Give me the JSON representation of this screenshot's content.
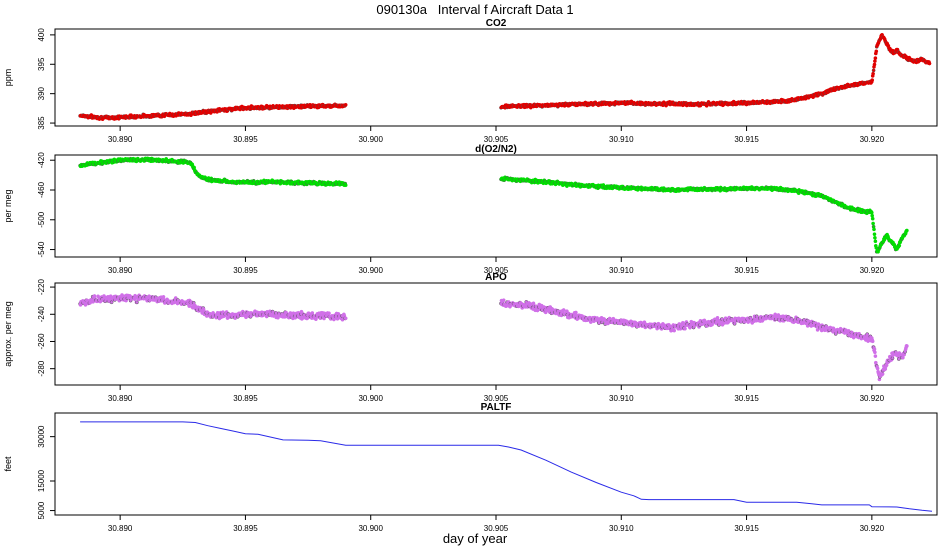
{
  "page": {
    "title": "090130a   Interval f Aircraft Data 1",
    "xlabel": "day of year"
  },
  "chart_data": [
    {
      "type": "scatter",
      "title": "CO2",
      "ylabel": "ppm",
      "color": "#e00000",
      "xlim": [
        30.8874,
        30.9226
      ],
      "ylim": [
        384.5,
        401
      ],
      "xticks": [
        "30.890",
        "30.895",
        "30.900",
        "30.905",
        "30.910",
        "30.915",
        "30.920"
      ],
      "yticks": [
        "385",
        "390",
        "395",
        "400"
      ],
      "series": [
        {
          "x": [
            30.8884,
            30.889,
            30.8895,
            30.89,
            30.8905,
            30.891,
            30.8915,
            30.892,
            30.8925,
            30.8929,
            30.8932,
            30.894,
            30.895,
            30.896,
            30.897,
            30.898,
            30.899,
            30.9052,
            30.906,
            30.907,
            30.908,
            30.909,
            30.91,
            30.911,
            30.912,
            30.913,
            30.914,
            30.915,
            30.916,
            30.917,
            30.9175,
            30.918,
            30.9185,
            30.919,
            30.9195,
            30.92,
            30.9202,
            30.9204,
            30.9206,
            30.9208,
            30.921,
            30.9212,
            30.9215,
            30.9218,
            30.922,
            30.9223
          ],
          "y": [
            386.3,
            386.0,
            385.9,
            386.0,
            386.1,
            386.2,
            386.3,
            386.4,
            386.5,
            386.6,
            386.8,
            387.2,
            387.6,
            387.7,
            387.8,
            387.9,
            388.0,
            387.8,
            387.9,
            388.0,
            388.2,
            388.3,
            388.4,
            388.3,
            388.3,
            388.2,
            388.3,
            388.4,
            388.6,
            389.0,
            389.5,
            390.0,
            390.8,
            391.3,
            391.7,
            392.0,
            398.0,
            400.0,
            398.5,
            397.0,
            397.3,
            396.5,
            395.8,
            395.5,
            395.8,
            395.2
          ]
        }
      ]
    },
    {
      "type": "scatter",
      "title": "d(O2/N2)",
      "ylabel": "per meg",
      "color": "#00dd00",
      "xlim": [
        30.8874,
        30.9226
      ],
      "ylim": [
        -550,
        -413
      ],
      "xticks": [
        "30.890",
        "30.895",
        "30.900",
        "30.905",
        "30.910",
        "30.915",
        "30.920"
      ],
      "yticks": [
        "-420",
        "-460",
        "-500",
        "-540"
      ],
      "series": [
        {
          "x": [
            30.8884,
            30.889,
            30.89,
            30.891,
            30.892,
            30.8928,
            30.8931,
            30.8935,
            30.894,
            30.895,
            30.896,
            30.897,
            30.898,
            30.899,
            30.9052,
            30.906,
            30.907,
            30.908,
            30.909,
            30.91,
            30.911,
            30.912,
            30.913,
            30.914,
            30.915,
            30.916,
            30.917,
            30.918,
            30.9185,
            30.919,
            30.9195,
            30.92,
            30.9202,
            30.9204,
            30.9206,
            30.9208,
            30.921,
            30.9212,
            30.9214
          ],
          "y": [
            -427,
            -424,
            -420,
            -419,
            -421,
            -423,
            -440,
            -446,
            -448,
            -450,
            -449,
            -450,
            -451,
            -452,
            -445,
            -447,
            -449,
            -453,
            -455,
            -457,
            -458,
            -460,
            -459,
            -459,
            -458,
            -458,
            -461,
            -468,
            -475,
            -483,
            -488,
            -490,
            -545,
            -530,
            -522,
            -530,
            -540,
            -525,
            -515
          ]
        }
      ]
    },
    {
      "type": "scatter",
      "title": "APO",
      "ylabel": "approx. per meg",
      "color": "#d070e8",
      "xlim": [
        30.8874,
        30.9226
      ],
      "ylim": [
        -292,
        -217
      ],
      "xticks": [
        "30.890",
        "30.895",
        "30.900",
        "30.905",
        "30.910",
        "30.915",
        "30.920"
      ],
      "yticks": [
        "-220",
        "-240",
        "-260",
        "-280"
      ],
      "series": [
        {
          "x": [
            30.8884,
            30.889,
            30.89,
            30.891,
            30.892,
            30.8928,
            30.8931,
            30.8935,
            30.894,
            30.895,
            30.896,
            30.897,
            30.898,
            30.899,
            30.9052,
            30.906,
            30.907,
            30.908,
            30.909,
            30.91,
            30.911,
            30.912,
            30.913,
            30.914,
            30.915,
            30.916,
            30.917,
            30.918,
            30.919,
            30.9195,
            30.92,
            30.9203,
            30.9206,
            30.9209,
            30.9212,
            30.9214
          ],
          "y": [
            -232,
            -229,
            -228,
            -228,
            -230,
            -232,
            -236,
            -240,
            -241,
            -240,
            -240,
            -241,
            -241,
            -242,
            -232,
            -233,
            -236,
            -241,
            -244,
            -246,
            -248,
            -250,
            -247,
            -245,
            -244,
            -242,
            -244,
            -250,
            -253,
            -256,
            -258,
            -287,
            -276,
            -268,
            -272,
            -264
          ]
        }
      ]
    },
    {
      "type": "line",
      "title": "PALTF",
      "ylabel": "feet",
      "color": "#2a2ae8",
      "xlim": [
        30.8874,
        30.9226
      ],
      "ylim": [
        3500,
        38000
      ],
      "xticks": [
        "30.890",
        "30.895",
        "30.900",
        "30.905",
        "30.910",
        "30.915",
        "30.920"
      ],
      "yticks": [
        "5000",
        "15000",
        "30000"
      ],
      "series": [
        {
          "x": [
            30.8884,
            30.8893,
            30.8902,
            30.8925,
            30.893,
            30.8935,
            30.894,
            30.8945,
            30.895,
            30.8955,
            30.8965,
            30.8975,
            30.898,
            30.899,
            30.9,
            30.902,
            30.904,
            30.9051,
            30.9055,
            30.906,
            30.907,
            30.908,
            30.909,
            30.91,
            30.9105,
            30.9108,
            30.9111,
            30.912,
            30.913,
            30.9145,
            30.915,
            30.916,
            30.917,
            30.9176,
            30.918,
            30.919,
            30.9199,
            30.92,
            30.921,
            30.9215,
            30.922,
            30.9224
          ],
          "y": [
            35000,
            35000,
            35000,
            35000,
            34800,
            33700,
            32800,
            31900,
            31000,
            30800,
            28900,
            28800,
            28600,
            27100,
            27100,
            27100,
            27100,
            27100,
            26500,
            25500,
            22000,
            18000,
            14500,
            11200,
            10000,
            8800,
            8700,
            8700,
            8700,
            8700,
            7800,
            7800,
            7800,
            7300,
            6900,
            6900,
            6900,
            6300,
            6200,
            5600,
            5100,
            4800
          ]
        }
      ]
    }
  ]
}
